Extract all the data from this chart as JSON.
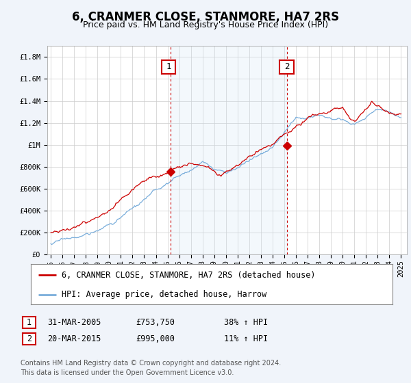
{
  "title": "6, CRANMER CLOSE, STANMORE, HA7 2RS",
  "subtitle": "Price paid vs. HM Land Registry's House Price Index (HPI)",
  "ylabel_ticks": [
    "£0",
    "£200K",
    "£400K",
    "£600K",
    "£800K",
    "£1M",
    "£1.2M",
    "£1.4M",
    "£1.6M",
    "£1.8M"
  ],
  "ylabel_values": [
    0,
    200000,
    400000,
    600000,
    800000,
    1000000,
    1200000,
    1400000,
    1600000,
    1800000
  ],
  "ylim": [
    0,
    1900000
  ],
  "hpi_color": "#7aaedb",
  "price_color": "#cc0000",
  "marker1_year": 2005.25,
  "marker2_year": 2015.25,
  "marker1_price": 753750,
  "marker2_price": 995000,
  "vline_color": "#cc0000",
  "vline_style": "--",
  "legend_label1": "6, CRANMER CLOSE, STANMORE, HA7 2RS (detached house)",
  "legend_label2": "HPI: Average price, detached house, Harrow",
  "table_row1": [
    "1",
    "31-MAR-2005",
    "£753,750",
    "38% ↑ HPI"
  ],
  "table_row2": [
    "2",
    "20-MAR-2015",
    "£995,000",
    "11% ↑ HPI"
  ],
  "footer": "Contains HM Land Registry data © Crown copyright and database right 2024.\nThis data is licensed under the Open Government Licence v3.0.",
  "background_color": "#f0f4fa",
  "plot_bg_color": "#ffffff",
  "grid_color": "#cccccc",
  "span_color": "#d0e4f5",
  "title_fontsize": 12,
  "subtitle_fontsize": 9,
  "tick_fontsize": 7.5,
  "legend_fontsize": 8.5,
  "table_fontsize": 8.5,
  "footer_fontsize": 7
}
